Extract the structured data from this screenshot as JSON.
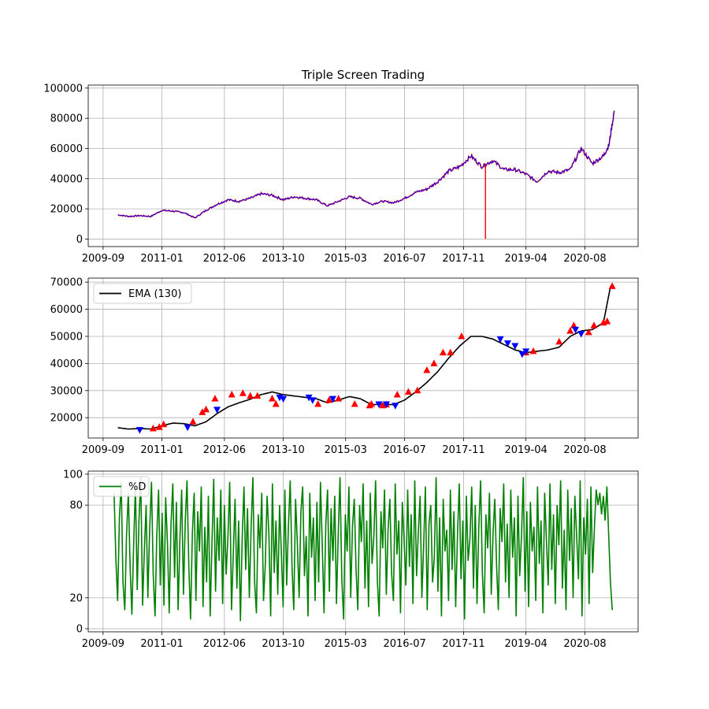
{
  "chart_data": [
    {
      "type": "line",
      "title": "Triple Screen Trading",
      "xlabel": "",
      "ylabel": "",
      "x_range": [
        "2009-05-01",
        "2021-10-15"
      ],
      "ylim": [
        -5000,
        102000
      ],
      "x_ticks": [
        "2009-09",
        "2011-01",
        "2012-06",
        "2013-10",
        "2015-03",
        "2016-07",
        "2017-11",
        "2019-04",
        "2020-08"
      ],
      "y_ticks": [
        0,
        20000,
        40000,
        60000,
        80000,
        100000
      ],
      "y_tick_labels": [
        "0",
        "20000",
        "40000",
        "60000",
        "80000",
        "100000"
      ],
      "grid": true,
      "series": [
        {
          "color": "#0000ff",
          "secondary_color": "#ff0000",
          "x": [
            "2010-01-01",
            "2010-04-01",
            "2010-07-01",
            "2010-10-01",
            "2011-01-01",
            "2011-04-01",
            "2011-07-01",
            "2011-10-01",
            "2012-01-01",
            "2012-04-01",
            "2012-07-01",
            "2012-10-01",
            "2013-01-01",
            "2013-04-01",
            "2013-07-01",
            "2013-10-01",
            "2014-01-01",
            "2014-04-01",
            "2014-07-01",
            "2014-10-01",
            "2015-01-01",
            "2015-04-01",
            "2015-07-01",
            "2015-10-01",
            "2016-01-01",
            "2016-04-01",
            "2016-07-01",
            "2016-10-01",
            "2017-01-01",
            "2017-04-01",
            "2017-07-01",
            "2017-10-01",
            "2018-01-01",
            "2018-04-01",
            "2018-07-01",
            "2018-10-01",
            "2019-01-01",
            "2019-04-01",
            "2019-07-01",
            "2019-10-01",
            "2020-01-01",
            "2020-04-01",
            "2020-07-01",
            "2020-10-01",
            "2021-01-01",
            "2021-02-15",
            "2021-04-01"
          ],
          "values": [
            16000,
            15000,
            15500,
            15000,
            19000,
            18500,
            17500,
            14000,
            19000,
            23000,
            26000,
            25000,
            27000,
            30000,
            29000,
            26000,
            28000,
            27000,
            26000,
            22000,
            25000,
            28000,
            27000,
            23000,
            25000,
            24000,
            27000,
            31000,
            33000,
            38000,
            45000,
            48000,
            55000,
            48000,
            52000,
            46000,
            46000,
            43000,
            38000,
            45000,
            44000,
            46000,
            60000,
            50000,
            55000,
            62000,
            85000
          ]
        }
      ],
      "spike": {
        "x": "2018-05-01",
        "from": 50000,
        "to": 0
      }
    },
    {
      "type": "line",
      "title": "",
      "x_range": [
        "2009-05-01",
        "2021-10-15"
      ],
      "ylim": [
        12500,
        71500
      ],
      "x_ticks": [
        "2009-09",
        "2011-01",
        "2012-06",
        "2013-10",
        "2015-03",
        "2016-07",
        "2017-11",
        "2019-04",
        "2020-08"
      ],
      "y_ticks": [
        20000,
        30000,
        40000,
        50000,
        60000,
        70000
      ],
      "y_tick_labels": [
        "20000",
        "30000",
        "40000",
        "50000",
        "60000",
        "70000"
      ],
      "grid": true,
      "legend": "upper-left",
      "series": [
        {
          "name": "EMA (130)",
          "color": "#000000",
          "x": [
            "2010-01-01",
            "2010-04-01",
            "2010-07-01",
            "2010-10-01",
            "2011-01-01",
            "2011-04-01",
            "2011-07-01",
            "2011-10-01",
            "2012-01-01",
            "2012-04-01",
            "2012-07-01",
            "2012-10-01",
            "2013-01-01",
            "2013-04-01",
            "2013-07-01",
            "2013-10-01",
            "2014-01-01",
            "2014-04-01",
            "2014-07-01",
            "2014-10-01",
            "2015-01-01",
            "2015-04-01",
            "2015-07-01",
            "2015-10-01",
            "2016-01-01",
            "2016-04-01",
            "2016-07-01",
            "2016-10-01",
            "2017-01-01",
            "2017-04-01",
            "2017-07-01",
            "2017-10-01",
            "2018-01-01",
            "2018-04-01",
            "2018-07-01",
            "2018-10-01",
            "2019-01-01",
            "2019-04-01",
            "2019-07-01",
            "2019-10-01",
            "2020-01-01",
            "2020-04-01",
            "2020-07-01",
            "2020-10-01",
            "2021-01-01",
            "2021-03-01"
          ],
          "values": [
            16300,
            15800,
            16000,
            15800,
            17000,
            18000,
            17800,
            17000,
            18500,
            21500,
            24000,
            25500,
            26800,
            28500,
            29500,
            28500,
            28000,
            27500,
            27000,
            25500,
            26500,
            27800,
            27000,
            24800,
            25000,
            24800,
            26500,
            29500,
            33000,
            37000,
            42000,
            46500,
            50000,
            50000,
            49000,
            47000,
            45000,
            44000,
            44500,
            45000,
            46000,
            50000,
            52000,
            52500,
            55000,
            68500
          ]
        }
      ],
      "buy_signals": {
        "color": "#ff0000",
        "marker": "triangle-up",
        "x": [
          "2010-10-20",
          "2010-12-10",
          "2011-01-15",
          "2011-09-15",
          "2011-12-01",
          "2012-01-01",
          "2012-03-15",
          "2012-08-01",
          "2012-11-01",
          "2013-01-01",
          "2013-03-01",
          "2013-07-01",
          "2013-08-01",
          "2014-07-15",
          "2014-10-15",
          "2015-01-01",
          "2015-05-15",
          "2015-09-15",
          "2015-10-01",
          "2016-01-01",
          "2016-02-01",
          "2016-05-01",
          "2016-08-01",
          "2016-10-15",
          "2017-01-01",
          "2017-03-01",
          "2017-05-15",
          "2017-07-15",
          "2017-10-15",
          "2019-04-01",
          "2019-06-01",
          "2020-01-01",
          "2020-04-01",
          "2020-05-01",
          "2020-09-01",
          "2020-10-15",
          "2021-01-01",
          "2021-02-01",
          "2021-03-15"
        ],
        "values": [
          16000,
          16500,
          17500,
          18500,
          22000,
          23000,
          27000,
          28500,
          29000,
          28000,
          28000,
          27000,
          25000,
          25000,
          26500,
          27000,
          25000,
          24500,
          25000,
          24500,
          24800,
          28500,
          29500,
          30000,
          37500,
          40000,
          44000,
          44000,
          50000,
          44000,
          44500,
          48000,
          52000,
          54000,
          51500,
          54000,
          55000,
          55500,
          68500
        ]
      },
      "sell_signals": {
        "color": "#0000ff",
        "marker": "triangle-down",
        "x": [
          "2010-07-01",
          "2011-08-01",
          "2012-04-01",
          "2013-09-01",
          "2013-10-01",
          "2014-05-01",
          "2014-06-01",
          "2014-11-15",
          "2015-12-01",
          "2016-02-01",
          "2016-04-15",
          "2018-09-01",
          "2018-11-01",
          "2019-01-01",
          "2019-03-01",
          "2019-04-01",
          "2020-05-15",
          "2020-07-01"
        ],
        "values": [
          15500,
          16500,
          23000,
          27500,
          27000,
          27500,
          26500,
          27000,
          25000,
          25000,
          24500,
          49000,
          47500,
          46500,
          43500,
          44500,
          52500,
          51000
        ]
      }
    },
    {
      "type": "line",
      "title": "",
      "x_range": [
        "2009-05-01",
        "2021-10-15"
      ],
      "ylim": [
        -2,
        102
      ],
      "x_ticks": [
        "2009-09",
        "2011-01",
        "2012-06",
        "2013-10",
        "2015-03",
        "2016-07",
        "2017-11",
        "2019-04",
        "2020-08"
      ],
      "y_ticks": [
        0,
        20,
        80,
        100
      ],
      "y_tick_labels": [
        "0",
        "20",
        "80",
        "100"
      ],
      "grid": true,
      "legend": "upper-left",
      "series": [
        {
          "name": "%D",
          "color": "#008000",
          "x_start": "2009-12-01",
          "x_end": "2021-03-15",
          "values": [
            88,
            45,
            18,
            72,
            95,
            30,
            12,
            60,
            88,
            40,
            9,
            55,
            92,
            25,
            70,
            98,
            15,
            50,
            80,
            20,
            65,
            95,
            35,
            8,
            60,
            90,
            28,
            75,
            15,
            85,
            55,
            10,
            68,
            94,
            33,
            82,
            12,
            58,
            90,
            22,
            70,
            96,
            40,
            6,
            62,
            88,
            18,
            76,
            50,
            92,
            14,
            66,
            30,
            86,
            8,
            54,
            97,
            24,
            72,
            44,
            90,
            16,
            80,
            35,
            60,
            95,
            12,
            48,
            84,
            26,
            70,
            5,
            58,
            92,
            38,
            78,
            20,
            64,
            98,
            30,
            10,
            74,
            52,
            88,
            18,
            42,
            86,
            62,
            8,
            94,
            36,
            70,
            22,
            80,
            50,
            14,
            90,
            28,
            66,
            96,
            40,
            12,
            84,
            56,
            20,
            76,
            92,
            34,
            60,
            8,
            88,
            46,
            72,
            18,
            82,
            30,
            95,
            54,
            10,
            68,
            90,
            24,
            78,
            44,
            86,
            16,
            62,
            98,
            32,
            6,
            74,
            50,
            92,
            20,
            66,
            84,
            38,
            12,
            80,
            56,
            94,
            26,
            70,
            14,
            88,
            42,
            60,
            96,
            30,
            8,
            76,
            52,
            90,
            22,
            64,
            84,
            36,
            18,
            94,
            48,
            70,
            10,
            82,
            58,
            28,
            90,
            40,
            74,
            16,
            96,
            34,
            62,
            86,
            20,
            54,
            92,
            12,
            68,
            80,
            30,
            46,
            98,
            24,
            72,
            8,
            84,
            50,
            64,
            18,
            90,
            38,
            76,
            14,
            60,
            94,
            32,
            70,
            6,
            86,
            44,
            58,
            92,
            26,
            80,
            16,
            66,
            96,
            36,
            10,
            74,
            52,
            88,
            22,
            62,
            84,
            40,
            12,
            78,
            56,
            94,
            30,
            68,
            20,
            90,
            46,
            72,
            8,
            86,
            34,
            60,
            98,
            24,
            76,
            14,
            82,
            50,
            66,
            18,
            92,
            42,
            70,
            10,
            88,
            58,
            28,
            94,
            38,
            74,
            16,
            80,
            54,
            96,
            26,
            64,
            12,
            90,
            44,
            78,
            20,
            86,
            60,
            32,
            96,
            8,
            72,
            48,
            84,
            16,
            92,
            36,
            66,
            90,
            80,
            88,
            74,
            86,
            70,
            92,
            60,
            30,
            12
          ]
        }
      ]
    }
  ]
}
